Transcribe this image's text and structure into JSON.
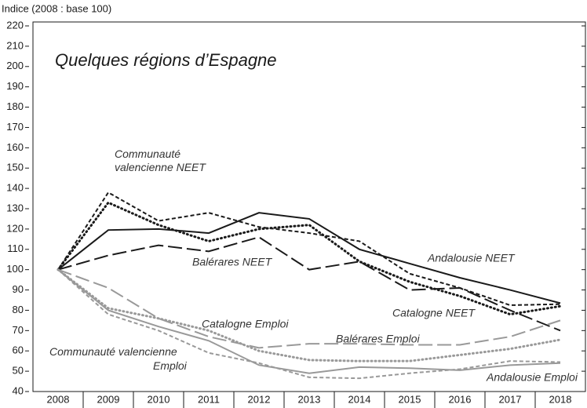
{
  "chart_data": {
    "type": "line",
    "title": "Quelques régions d’Espagne",
    "y_axis_label": "Indice (2008 : base 100)",
    "categories": [
      "2008",
      "2009",
      "2010",
      "2011",
      "2012",
      "2013",
      "2014",
      "2015",
      "2016",
      "2017",
      "2018"
    ],
    "ylim": [
      40,
      220
    ],
    "yticks": [
      40,
      50,
      60,
      70,
      80,
      90,
      100,
      110,
      120,
      130,
      140,
      150,
      160,
      170,
      180,
      190,
      200,
      210,
      220
    ],
    "series": [
      {
        "name": "Andalousie NEET",
        "color": "#1a1a1a",
        "dash": "solid",
        "values": [
          100,
          119.5,
          120,
          118,
          128,
          125,
          110,
          103,
          96,
          90,
          83.5
        ]
      },
      {
        "name": "Catalogne NEET",
        "color": "#1a1a1a",
        "dash": "dotted",
        "values": [
          100,
          133,
          122,
          114,
          120,
          122,
          104,
          94,
          87,
          78,
          82
        ]
      },
      {
        "name": "Communauté valencienne NEET",
        "color": "#1a1a1a",
        "dash": "short-dash",
        "values": [
          100,
          138,
          124,
          128,
          121,
          118,
          114,
          98,
          91,
          82.5,
          83
        ]
      },
      {
        "name": "Balérares NEET",
        "color": "#1a1a1a",
        "dash": "long-dash",
        "values": [
          100,
          107,
          112,
          109,
          116,
          100,
          104,
          90,
          91,
          80,
          70
        ]
      },
      {
        "name": "Andalousie Emploi",
        "color": "#999999",
        "dash": "solid",
        "values": [
          100,
          80,
          72,
          65,
          53,
          49,
          52,
          51.5,
          50.5,
          53,
          54
        ]
      },
      {
        "name": "Catalogne Emploi",
        "color": "#999999",
        "dash": "dotted",
        "values": [
          100,
          81,
          76,
          70,
          60,
          55.5,
          55,
          55,
          58,
          61,
          65.5
        ]
      },
      {
        "name": "Communauté valencienne Emploi",
        "color": "#999999",
        "dash": "short-dash",
        "values": [
          100,
          78,
          70,
          59,
          54,
          47,
          46.5,
          49,
          51,
          55,
          54.5
        ]
      },
      {
        "name": "Balérares Emploi",
        "color": "#999999",
        "dash": "long-dash",
        "values": [
          100,
          91,
          76,
          67,
          61.5,
          63.5,
          63.5,
          63,
          63,
          67,
          75
        ]
      }
    ]
  }
}
